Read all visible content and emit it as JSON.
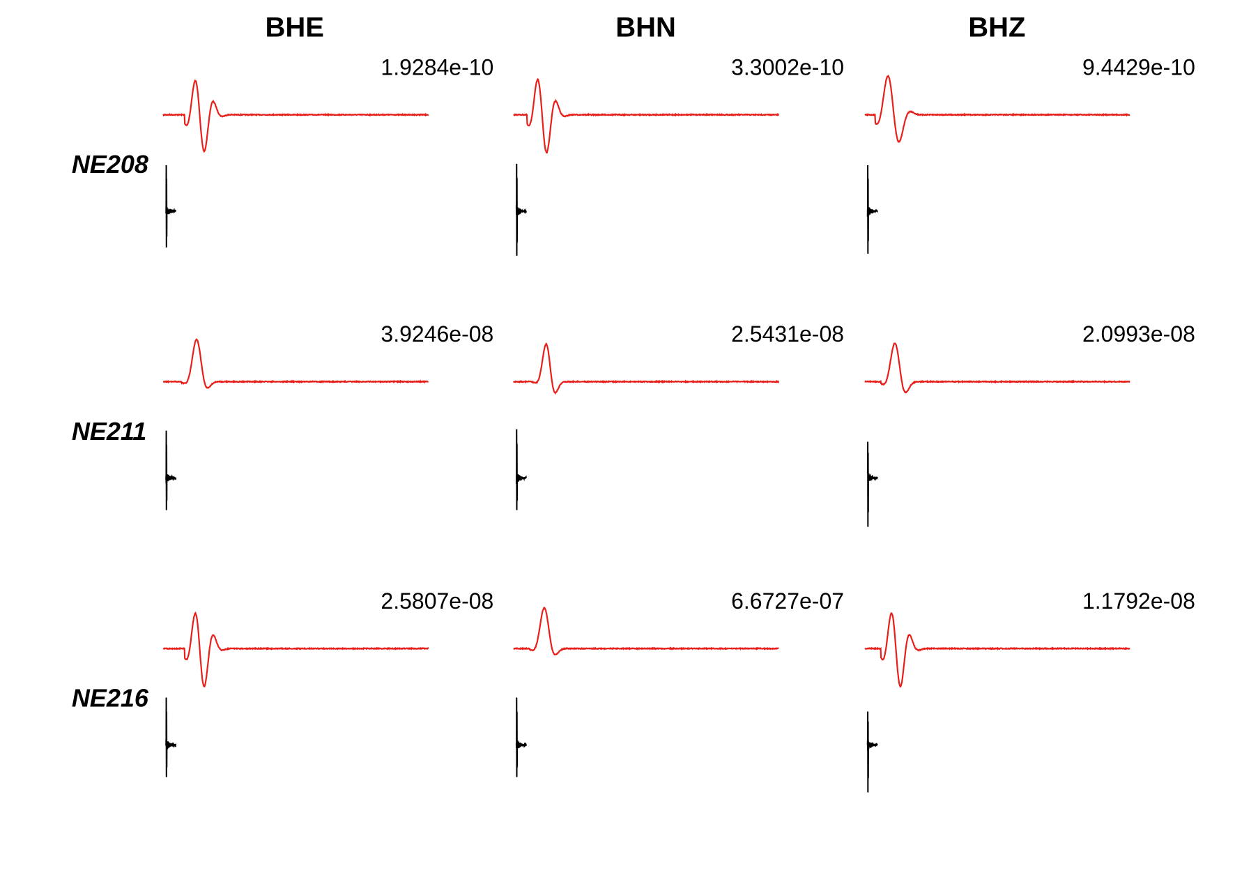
{
  "colors": {
    "synthetic": "#e8201c",
    "observed": "#000000",
    "background": "#ffffff"
  },
  "chart_data": {
    "type": "line",
    "title": "",
    "xlabel": "",
    "ylabel": "",
    "columns": [
      "BHE",
      "BHN",
      "BHZ"
    ],
    "stations": [
      "NE208",
      "NE211",
      "NE216"
    ],
    "amplitudes": [
      [
        "1.9284e-10",
        "3.3002e-10",
        "9.4429e-10"
      ],
      [
        "3.9246e-08",
        "2.5431e-08",
        "2.0993e-08"
      ],
      [
        "2.5807e-08",
        "6.6727e-07",
        "1.1792e-08"
      ]
    ],
    "series": [
      {
        "color": "#e8201c",
        "description_visible": false
      },
      {
        "color": "#000000",
        "description_visible": false
      }
    ],
    "grid": false,
    "legend": "none"
  }
}
